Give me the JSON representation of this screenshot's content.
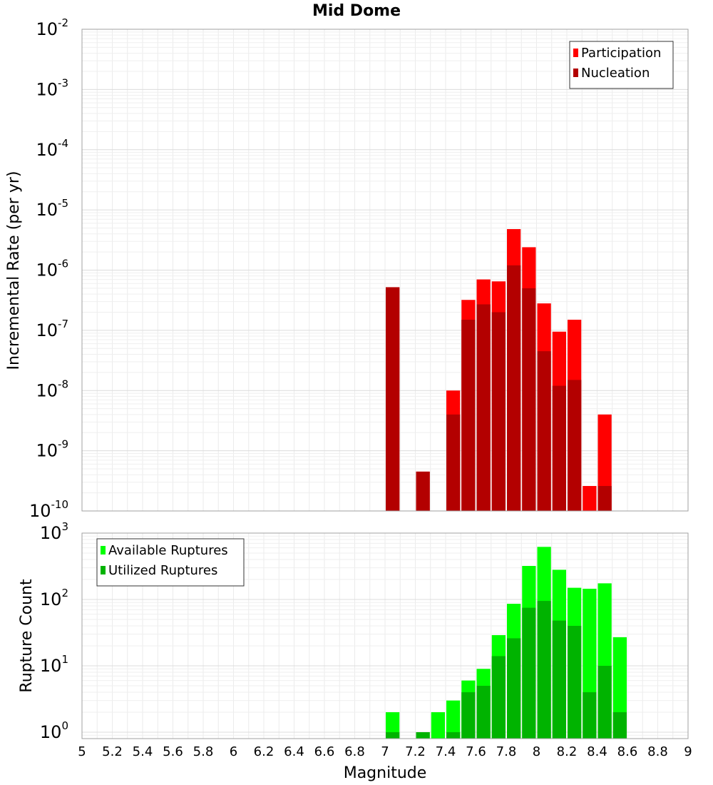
{
  "chart_data": [
    {
      "type": "bar",
      "title": "Mid Dome",
      "xlabel": "",
      "ylabel": "Incremental Rate (per yr)",
      "yscale": "log",
      "xlim": [
        5,
        9
      ],
      "ylim": [
        1e-10,
        0.01
      ],
      "grid": true,
      "legend_position": "top-right",
      "y_tick_exponents": [
        "-10",
        "-9",
        "-8",
        "-7",
        "-6",
        "-5",
        "-4",
        "-3",
        "-2"
      ],
      "bar_width": 0.1,
      "series": [
        {
          "name": "Participation",
          "color": "#ff0000",
          "x": [
            7.05,
            7.25,
            7.45,
            7.55,
            7.65,
            7.75,
            7.85,
            7.95,
            8.05,
            8.15,
            8.25,
            8.35,
            8.45
          ],
          "values": [
            5.2e-07,
            4.5e-10,
            1e-08,
            3.2e-07,
            7e-07,
            6.5e-07,
            4.8e-06,
            2.4e-06,
            2.8e-07,
            9.5e-08,
            1.5e-07,
            2.6e-10,
            4e-09
          ]
        },
        {
          "name": "Nucleation",
          "color": "#b30000",
          "x": [
            7.05,
            7.25,
            7.45,
            7.55,
            7.65,
            7.75,
            7.85,
            7.95,
            8.05,
            8.15,
            8.25,
            8.35,
            8.45
          ],
          "values": [
            5.2e-07,
            4.5e-10,
            4e-09,
            1.5e-07,
            2.7e-07,
            2e-07,
            1.2e-06,
            5e-07,
            4.5e-08,
            1.2e-08,
            1.5e-08,
            null,
            2.6e-10
          ]
        }
      ]
    },
    {
      "type": "bar",
      "title": "",
      "xlabel": "Magnitude",
      "ylabel": "Rupture Count",
      "yscale": "log",
      "xlim": [
        5,
        9
      ],
      "ylim": [
        0.8,
        1000
      ],
      "grid": true,
      "legend_position": "top-left",
      "y_tick_exponents": [
        "0",
        "1",
        "2",
        "3"
      ],
      "x_ticks": [
        "5",
        "5.2",
        "5.4",
        "5.6",
        "5.8",
        "6",
        "6.2",
        "6.4",
        "6.6",
        "6.8",
        "7",
        "7.2",
        "7.4",
        "7.6",
        "7.8",
        "8",
        "8.2",
        "8.4",
        "8.6",
        "8.8",
        "9"
      ],
      "bar_width": 0.1,
      "series": [
        {
          "name": "Available Ruptures",
          "color": "#00ff00",
          "x": [
            7.05,
            7.25,
            7.35,
            7.45,
            7.55,
            7.65,
            7.75,
            7.85,
            7.95,
            8.05,
            8.15,
            8.25,
            8.35,
            8.45,
            8.55
          ],
          "values": [
            2,
            1,
            2,
            3,
            6,
            9,
            29,
            86,
            320,
            620,
            280,
            150,
            145,
            175,
            27
          ]
        },
        {
          "name": "Utilized Ruptures",
          "color": "#00b300",
          "x": [
            7.05,
            7.25,
            7.35,
            7.45,
            7.55,
            7.65,
            7.75,
            7.85,
            7.95,
            8.05,
            8.15,
            8.25,
            8.35,
            8.45,
            8.55
          ],
          "values": [
            1,
            1,
            null,
            1,
            4,
            5,
            14,
            26,
            75,
            95,
            48,
            40,
            4,
            10,
            2
          ]
        }
      ]
    }
  ]
}
